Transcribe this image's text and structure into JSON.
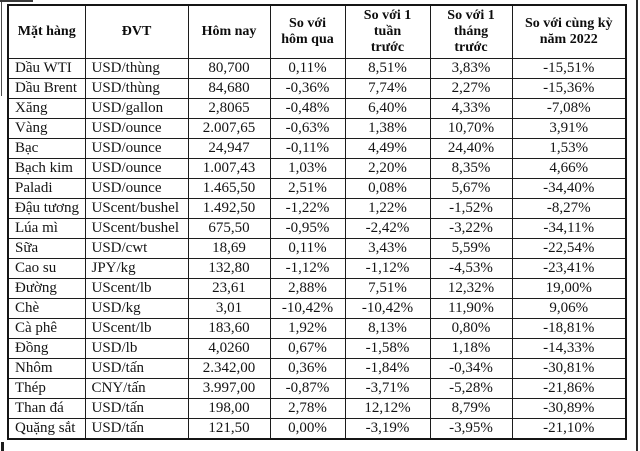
{
  "chart_data": {
    "type": "table",
    "title": "",
    "columns": [
      "Mặt hàng",
      "ĐVT",
      "Hôm nay",
      "So với\nhôm qua",
      "So với 1\ntuần\ntrước",
      "So với 1\ntháng\ntrước",
      "So với cùng kỳ\nnăm 2022"
    ],
    "rows": [
      [
        "Dầu WTI",
        "USD/thùng",
        "80,700",
        "0,11%",
        "8,51%",
        "3,83%",
        "-15,51%"
      ],
      [
        "Dầu Brent",
        "USD/thùng",
        "84,680",
        "-0,36%",
        "7,74%",
        "2,27%",
        "-15,36%"
      ],
      [
        "Xăng",
        "USD/gallon",
        "2,8065",
        "-0,48%",
        "6,40%",
        "4,33%",
        "-7,08%"
      ],
      [
        "Vàng",
        "USD/ounce",
        "2.007,65",
        "-0,63%",
        "1,38%",
        "10,70%",
        "3,91%"
      ],
      [
        "Bạc",
        "USD/ounce",
        "24,947",
        "-0,11%",
        "4,49%",
        "24,40%",
        "1,53%"
      ],
      [
        "Bạch kim",
        "USD/ounce",
        "1.007,43",
        "1,03%",
        "2,20%",
        "8,35%",
        "4,66%"
      ],
      [
        "Paladi",
        "USD/ounce",
        "1.465,50",
        "2,51%",
        "0,08%",
        "5,67%",
        "-34,40%"
      ],
      [
        "Đậu tương",
        "UScent/bushel",
        "1.492,50",
        "-1,22%",
        "1,22%",
        "-1,52%",
        "-8,27%"
      ],
      [
        "Lúa mì",
        "UScent/bushel",
        "675,50",
        "-0,95%",
        "-2,42%",
        "-3,22%",
        "-34,11%"
      ],
      [
        "Sữa",
        "USD/cwt",
        "18,69",
        "0,11%",
        "3,43%",
        "5,59%",
        "-22,54%"
      ],
      [
        "Cao su",
        "JPY/kg",
        "132,80",
        "-1,12%",
        "-1,12%",
        "-4,53%",
        "-23,41%"
      ],
      [
        "Đường",
        "UScent/lb",
        "23,61",
        "2,88%",
        "7,51%",
        "12,32%",
        "19,00%"
      ],
      [
        "Chè",
        "USD/kg",
        "3,01",
        "-10,42%",
        "-10,42%",
        "11,90%",
        "9,06%"
      ],
      [
        "Cà phê",
        "UScent/lb",
        "183,60",
        "1,92%",
        "8,13%",
        "0,80%",
        "-18,81%"
      ],
      [
        "Đồng",
        "USD/lb",
        "4,0260",
        "0,67%",
        "-1,58%",
        "1,18%",
        "-14,33%"
      ],
      [
        "Nhôm",
        "USD/tấn",
        "2.342,00",
        "0,36%",
        "-1,84%",
        "-0,34%",
        "-30,81%"
      ],
      [
        "Thép",
        "CNY/tấn",
        "3.997,00",
        "-0,87%",
        "-3,71%",
        "-5,28%",
        "-21,86%"
      ],
      [
        "Than đá",
        "USD/tấn",
        "198,00",
        "2,78%",
        "12,12%",
        "8,79%",
        "-30,89%"
      ],
      [
        "Quặng sắt",
        "USD/tấn",
        "121,50",
        "0,00%",
        "-3,19%",
        "-3,95%",
        "-21,10%"
      ]
    ]
  }
}
